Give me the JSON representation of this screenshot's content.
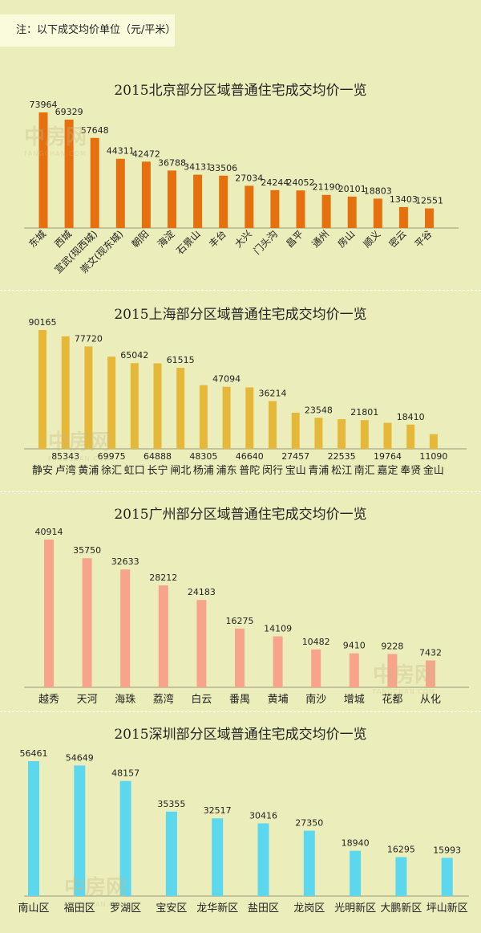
{
  "note": "注：以下成交均价单位（元/平米）",
  "watermark": {
    "logo": "中房网",
    "sub": "FANGCHAN.COM"
  },
  "chart_data": [
    {
      "type": "bar",
      "title": "2015北京部分区域普通住宅成交均价一览",
      "color": "#e66f0e",
      "categories": [
        "东城",
        "西城",
        "宣武(现西城)",
        "崇文(现东城)",
        "朝阳",
        "海淀",
        "石景山",
        "丰台",
        "大兴",
        "门头沟",
        "昌平",
        "通州",
        "房山",
        "顺义",
        "密云",
        "平谷"
      ],
      "values": [
        73964,
        69329,
        57648,
        44311,
        42472,
        36788,
        34131,
        33506,
        27034,
        24244,
        24052,
        21190,
        20101,
        18803,
        13403,
        12551
      ]
    },
    {
      "type": "bar",
      "title": "2015上海部分区域普通住宅成交均价一览",
      "color": "#e6b83a",
      "categories": [
        "静安",
        "卢湾",
        "黄浦",
        "徐汇",
        "虹口",
        "长宁",
        "闸北",
        "杨浦",
        "浦东",
        "普陀",
        "闵行",
        "宝山",
        "青浦",
        "松江",
        "南汇",
        "嘉定",
        "奉贤",
        "金山"
      ],
      "values": [
        90165,
        85343,
        77720,
        69975,
        65042,
        64888,
        61515,
        48305,
        47094,
        46640,
        36214,
        27457,
        23548,
        22535,
        21801,
        19764,
        18410,
        11090
      ]
    },
    {
      "type": "bar",
      "title": "2015广州部分区域普通住宅成交均价一览",
      "color": "#f7a48b",
      "categories": [
        "越秀",
        "天河",
        "海珠",
        "荔湾",
        "白云",
        "番禺",
        "黄埔",
        "南沙",
        "增城",
        "花都",
        "从化"
      ],
      "values": [
        40914,
        35750,
        32633,
        28212,
        24183,
        16275,
        14109,
        10482,
        9410,
        9228,
        7432
      ]
    },
    {
      "type": "bar",
      "title": "2015深圳部分区域普通住宅成交均价一览",
      "color": "#5dd7ee",
      "categories": [
        "南山区",
        "福田区",
        "罗湖区",
        "宝安区",
        "龙华新区",
        "盐田区",
        "龙岗区",
        "光明新区",
        "大鹏新区",
        "坪山新区"
      ],
      "values": [
        56461,
        54649,
        48157,
        35355,
        32517,
        30416,
        27350,
        18940,
        16295,
        15993
      ]
    }
  ]
}
